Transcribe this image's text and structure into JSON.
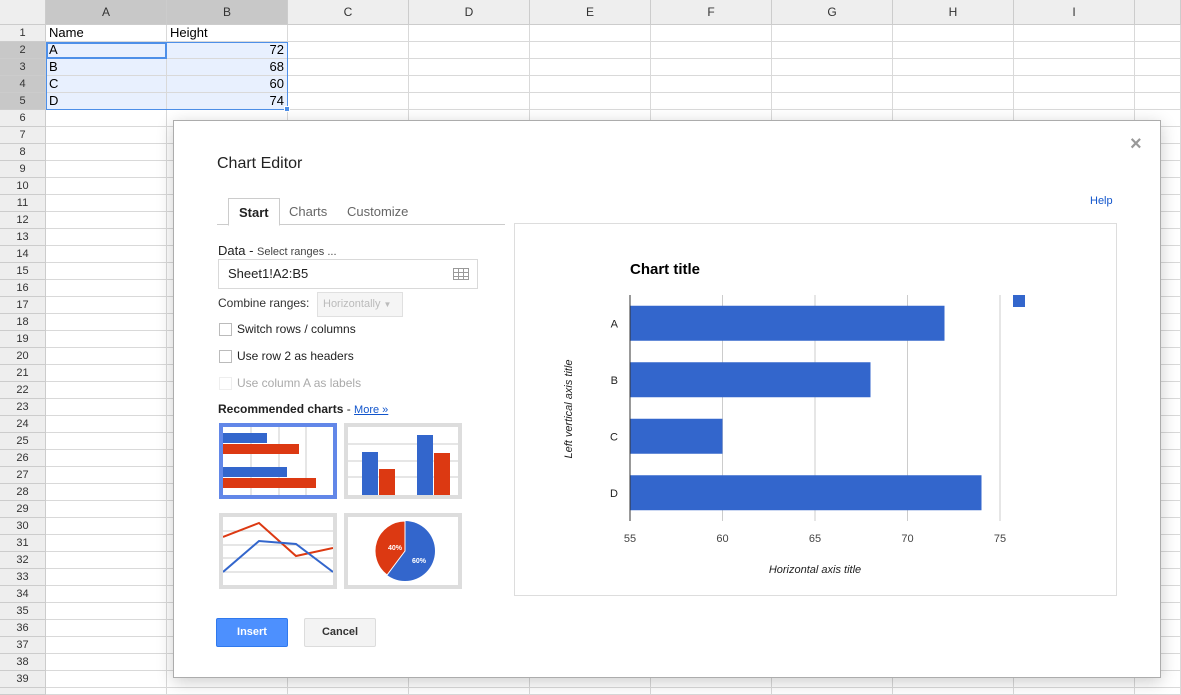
{
  "sheet": {
    "columns": [
      "A",
      "B",
      "C",
      "D",
      "E",
      "F",
      "G",
      "H",
      "I"
    ],
    "selected_columns": [
      "A",
      "B"
    ],
    "row_count": 40,
    "selected_rows": [
      2,
      3,
      4,
      5
    ],
    "cells": [
      [
        "Name",
        "Height"
      ],
      [
        "A",
        "72"
      ],
      [
        "B",
        "68"
      ],
      [
        "C",
        "60"
      ],
      [
        "D",
        "74"
      ]
    ]
  },
  "dialog": {
    "title": "Chart Editor",
    "close_icon": "close-icon",
    "help": "Help",
    "tabs": [
      {
        "label": "Start",
        "active": true
      },
      {
        "label": "Charts"
      },
      {
        "label": "Customize"
      }
    ],
    "data_label": "Data - ",
    "select_ranges": "Select ranges ...",
    "range_value": "Sheet1!A2:B5",
    "combine_label": "Combine ranges:",
    "combine_value": "Horizontally",
    "switch_rows": "Switch rows / columns",
    "use_row_headers": "Use row 2 as headers",
    "use_col_labels": "Use column A as labels",
    "recommended": "Recommended charts",
    "recommended_sep": " - ",
    "more": "More »",
    "pie_labels": [
      "40%",
      "60%"
    ],
    "insert": "Insert",
    "cancel": "Cancel"
  },
  "chart_data": {
    "type": "bar",
    "orientation": "horizontal",
    "title": "Chart title",
    "xlabel": "Horizontal axis title",
    "ylabel": "Left vertical axis title",
    "categories": [
      "A",
      "B",
      "C",
      "D"
    ],
    "values": [
      72,
      68,
      60,
      74
    ],
    "xlim": [
      55,
      75
    ],
    "xticks": [
      "55",
      "60",
      "65",
      "70",
      "75"
    ],
    "grid": true,
    "legend": "top-right",
    "color": "#3366cc"
  },
  "colors": {
    "accent": "#4d90fe",
    "bar": "#3366cc",
    "series2": "#dc3912"
  }
}
